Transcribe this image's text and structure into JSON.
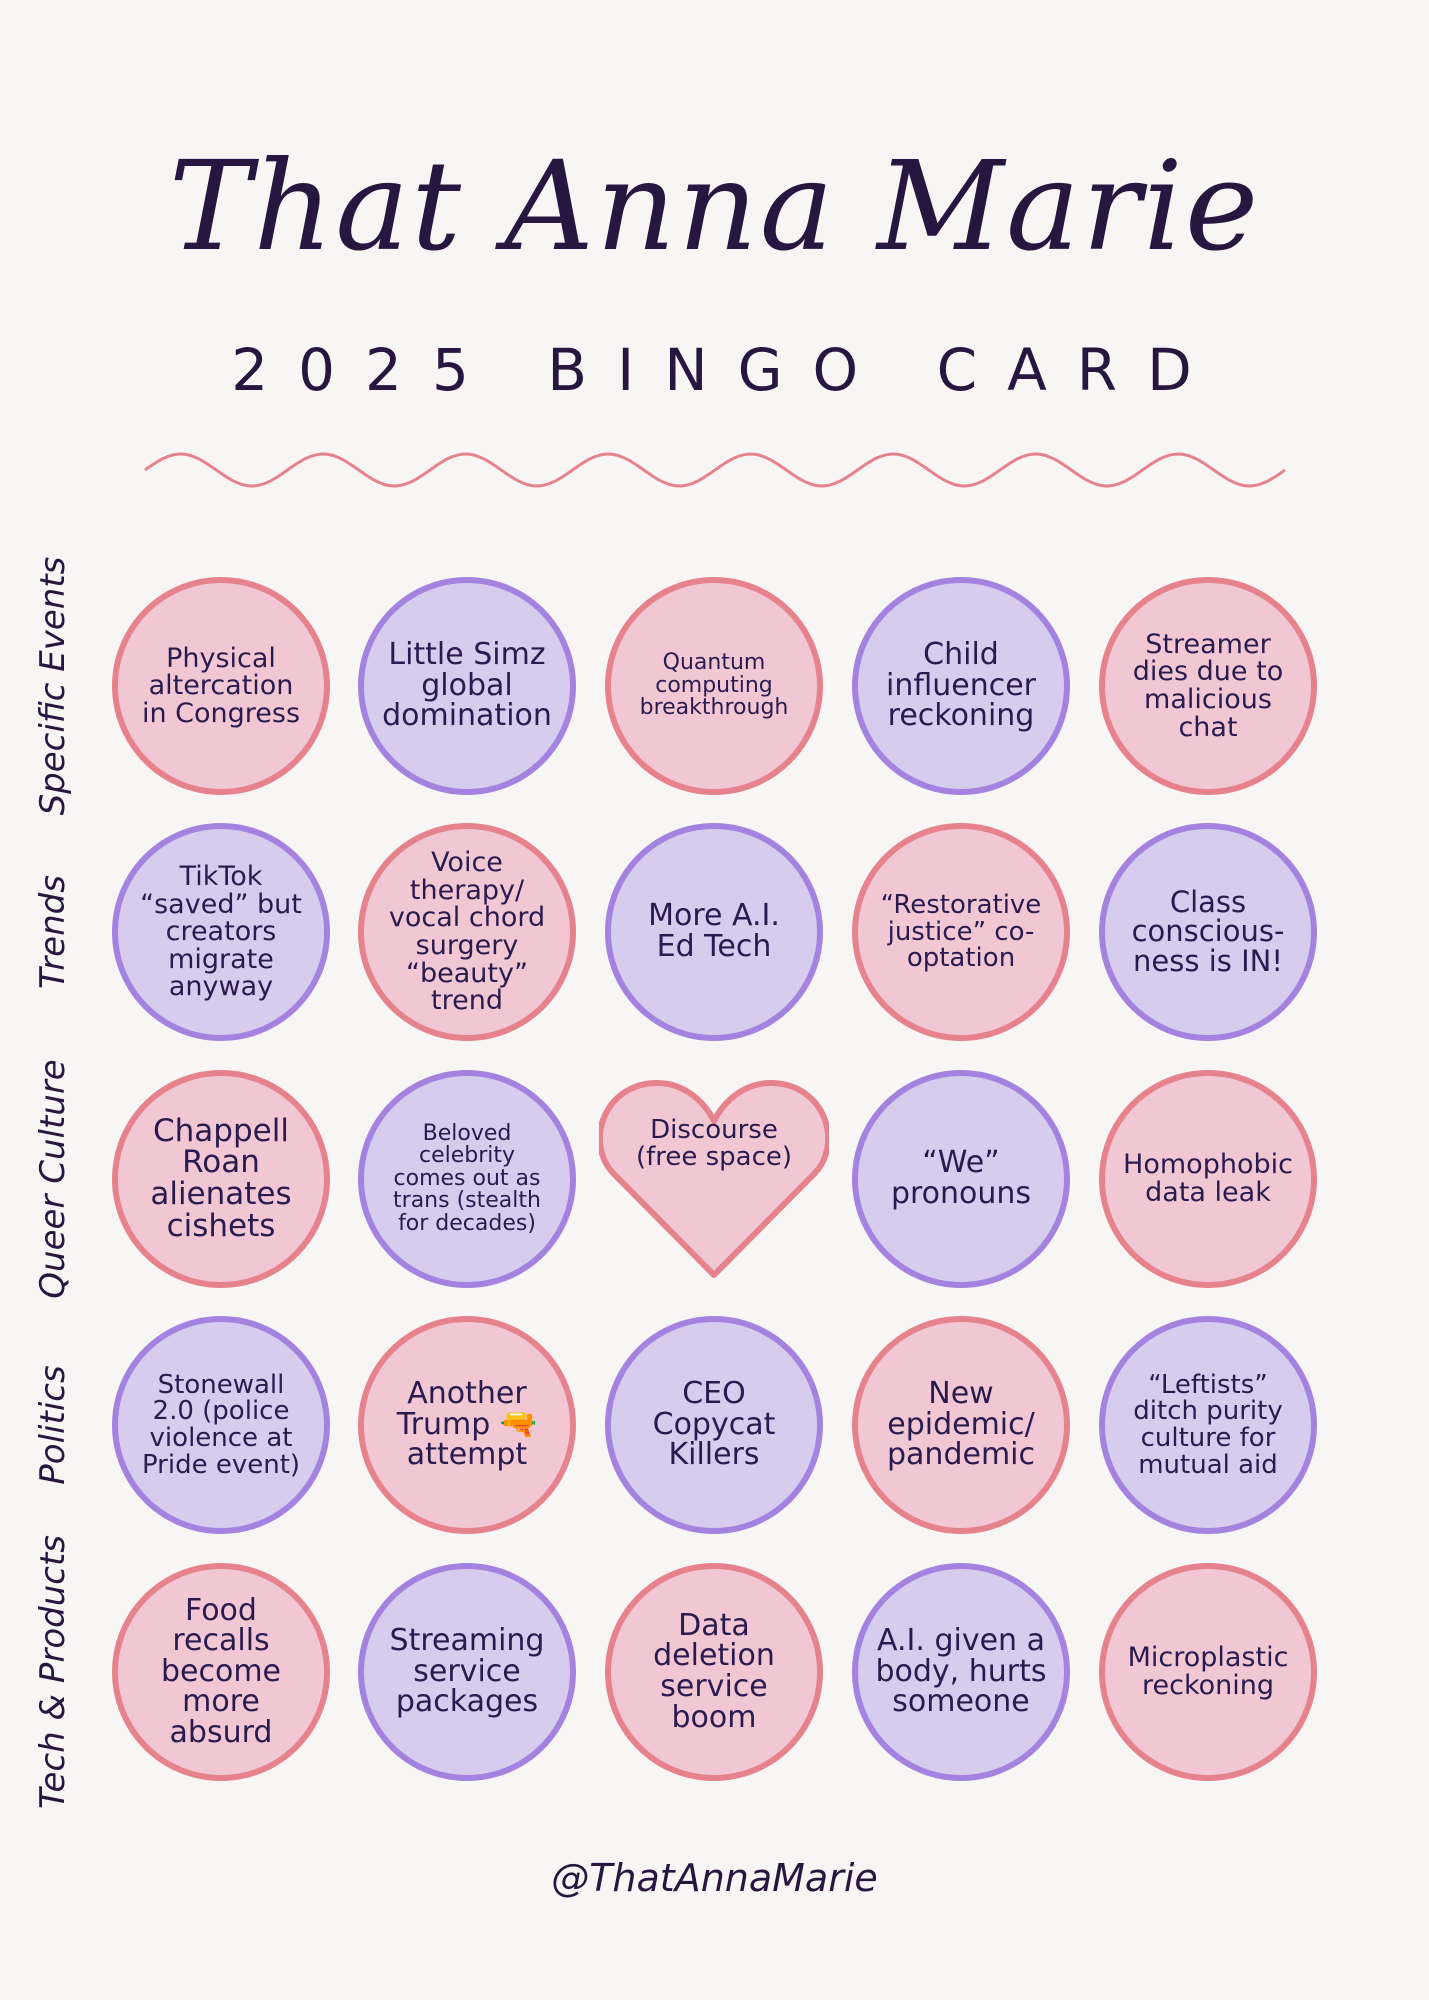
{
  "title": "That Anna Marie",
  "subtitle": "2025 BINGO CARD",
  "handle": "@ThatAnnaMarie",
  "colors": {
    "pink_fill": "#f1c7d3",
    "pink_border": "#e6828d",
    "purple_fill": "#d6cced",
    "purple_border": "#a483e0",
    "wave": "#e6828d",
    "text": "#27163f",
    "background": "#f8f6f4"
  },
  "rows": [
    {
      "label": "Specific Events",
      "cells": [
        {
          "text": "Physical altercation in Congress",
          "color": "pink"
        },
        {
          "text": "Little Simz global domination",
          "color": "purple"
        },
        {
          "text": "Quantum computing breakthrough",
          "color": "pink"
        },
        {
          "text": "Child influencer reckoning",
          "color": "purple"
        },
        {
          "text": "Streamer dies due to malicious chat",
          "color": "pink"
        }
      ]
    },
    {
      "label": "Trends",
      "cells": [
        {
          "text": "TikTok “saved” but creators migrate anyway",
          "color": "purple"
        },
        {
          "text": "Voice therapy/ vocal chord surgery “beauty” trend",
          "color": "pink"
        },
        {
          "text": "More A.I. Ed Tech",
          "color": "purple"
        },
        {
          "text": "“Restorative justice” co-optation",
          "color": "pink"
        },
        {
          "text": "Class conscious-ness is IN!",
          "color": "purple"
        }
      ]
    },
    {
      "label": "Queer Culture",
      "cells": [
        {
          "text": "Chappell Roan alienates cishets",
          "color": "pink"
        },
        {
          "text": "Beloved celebrity comes out as trans (stealth for decades)",
          "color": "purple"
        },
        {
          "text": "Discourse (free space)",
          "color": "pink",
          "shape": "heart"
        },
        {
          "text": "“We” pronouns",
          "color": "purple"
        },
        {
          "text": "Homophobic data leak",
          "color": "pink"
        }
      ]
    },
    {
      "label": "Politics",
      "cells": [
        {
          "text": "Stonewall 2.0 (police violence at Pride event)",
          "color": "purple"
        },
        {
          "text": "Another Trump 🔫 attempt",
          "color": "pink"
        },
        {
          "text": "CEO Copycat Killers",
          "color": "purple"
        },
        {
          "text": "New epidemic/ pandemic",
          "color": "pink"
        },
        {
          "text": "“Leftists” ditch purity culture for mutual aid",
          "color": "purple"
        }
      ]
    },
    {
      "label": "Tech & Products",
      "cells": [
        {
          "text": "Food recalls become more absurd",
          "color": "pink"
        },
        {
          "text": "Streaming service packages",
          "color": "purple"
        },
        {
          "text": "Data deletion service boom",
          "color": "pink"
        },
        {
          "text": "A.I. given a body, hurts someone",
          "color": "purple"
        },
        {
          "text": "Microplastic reckoning",
          "color": "pink"
        }
      ]
    }
  ]
}
